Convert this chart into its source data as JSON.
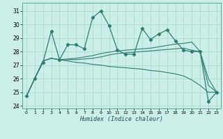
{
  "title": "",
  "xlabel": "Humidex (Indice chaleur)",
  "bg_color": "#cceee8",
  "line_color": "#2e7d6e",
  "grid_color": "#aaddcc",
  "xlim": [
    -0.5,
    23.5
  ],
  "ylim": [
    23.8,
    31.6
  ],
  "yticks": [
    24,
    25,
    26,
    27,
    28,
    29,
    30,
    31
  ],
  "xticks": [
    0,
    1,
    2,
    3,
    4,
    5,
    6,
    7,
    8,
    9,
    10,
    11,
    12,
    13,
    14,
    15,
    16,
    17,
    18,
    19,
    20,
    21,
    22,
    23
  ],
  "series0": [
    24.7,
    26.0,
    27.2,
    29.5,
    27.4,
    28.5,
    28.5,
    28.2,
    30.5,
    31.0,
    29.9,
    28.1,
    27.8,
    27.8,
    29.7,
    28.9,
    29.3,
    29.6,
    28.8,
    28.1,
    28.0,
    28.0,
    24.3,
    25.0
  ],
  "series1": [
    24.7,
    26.0,
    27.3,
    27.5,
    27.4,
    27.45,
    27.5,
    27.6,
    27.7,
    27.85,
    27.95,
    28.05,
    28.1,
    28.15,
    28.2,
    28.25,
    28.35,
    28.45,
    28.55,
    28.6,
    28.7,
    28.0,
    26.0,
    25.0
  ],
  "series2": [
    24.7,
    26.0,
    27.3,
    27.5,
    27.4,
    27.4,
    27.4,
    27.45,
    27.5,
    27.6,
    27.75,
    27.85,
    27.9,
    27.95,
    28.0,
    28.05,
    28.1,
    28.15,
    28.2,
    28.25,
    28.1,
    28.0,
    25.5,
    25.0
  ],
  "series3": [
    24.7,
    26.0,
    27.3,
    27.5,
    27.4,
    27.3,
    27.2,
    27.15,
    27.05,
    27.0,
    26.9,
    26.85,
    26.8,
    26.75,
    26.7,
    26.6,
    26.55,
    26.45,
    26.35,
    26.2,
    25.9,
    25.5,
    25.0,
    25.0
  ]
}
